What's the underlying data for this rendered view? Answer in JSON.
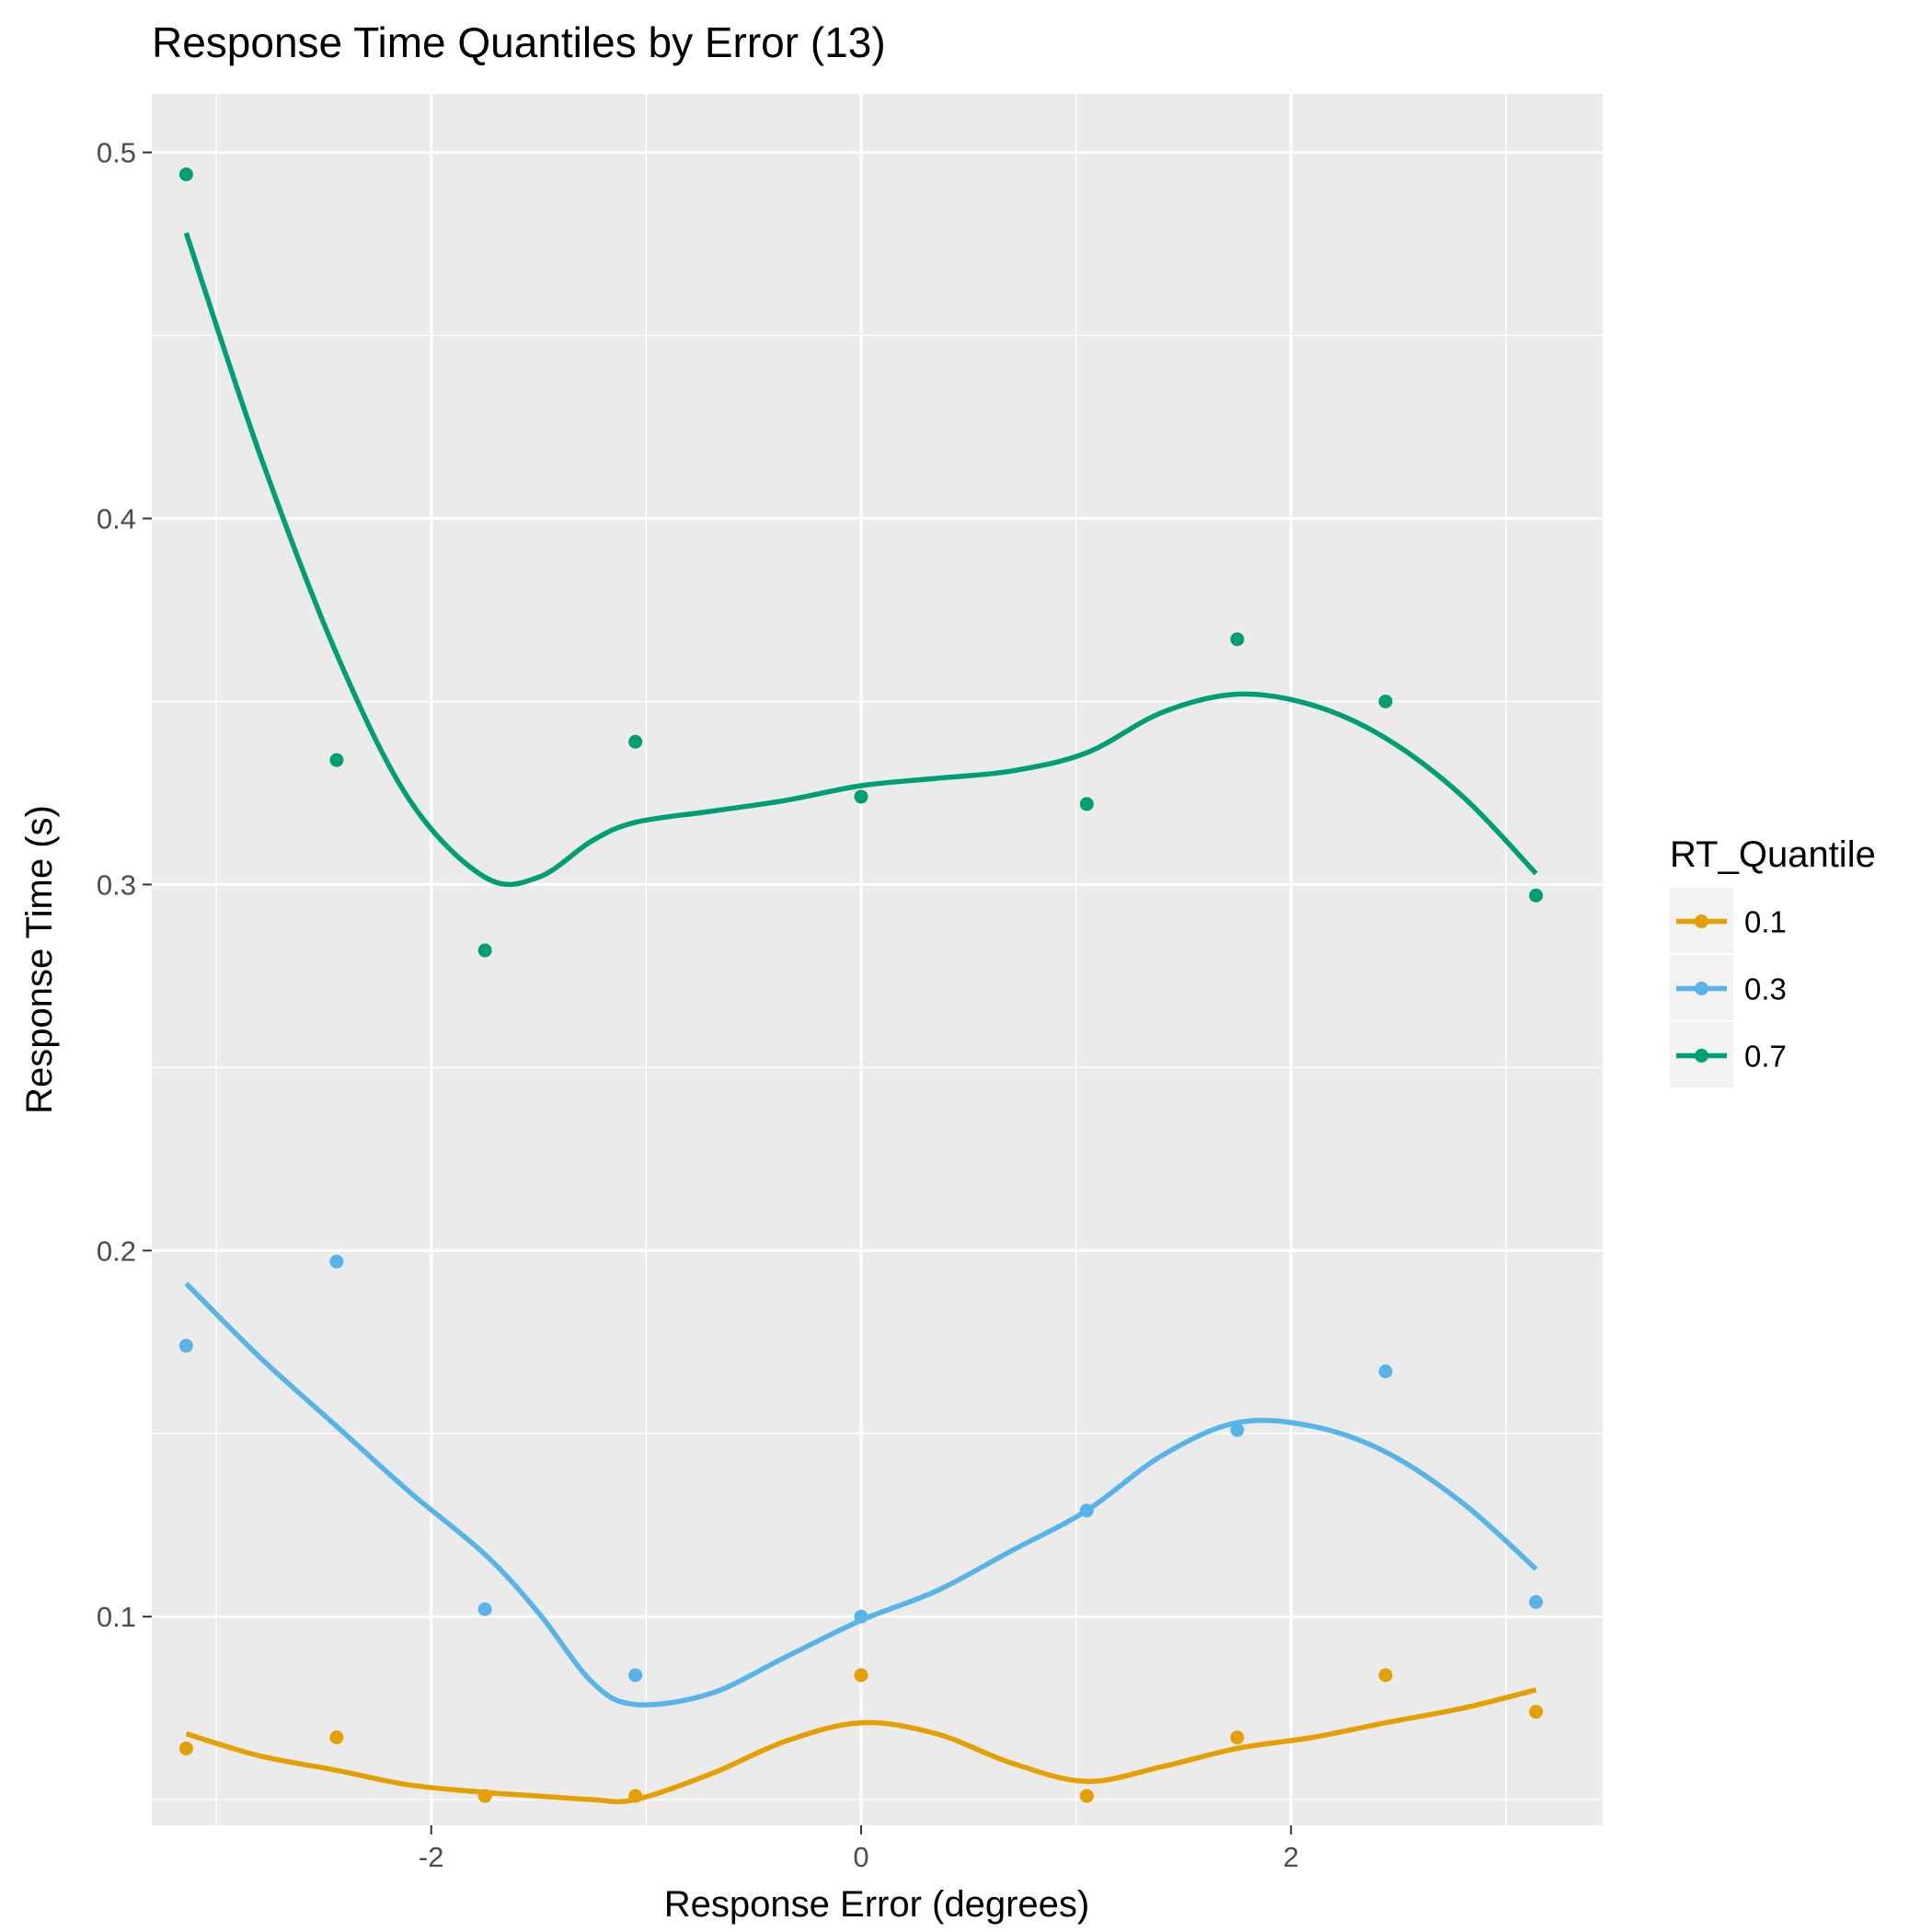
{
  "chart_data": {
    "type": "scatter",
    "title": "Response Time Quantiles by Error (13)",
    "xlabel": "Response Error (degrees)",
    "ylabel": "Response Time (s)",
    "xlim": [
      -3.3,
      3.45
    ],
    "ylim": [
      0.043,
      0.516
    ],
    "x_ticks": [
      -2,
      0,
      2
    ],
    "x_tick_labels": [
      "-2",
      "0",
      "2"
    ],
    "y_ticks": [
      0.1,
      0.2,
      0.3,
      0.4,
      0.5
    ],
    "y_tick_labels": [
      "0.1",
      "0.2",
      "0.3",
      "0.4",
      "0.5"
    ],
    "x_minor_ticks": [
      -3,
      -1,
      1,
      3
    ],
    "y_minor_ticks": [
      0.05,
      0.15,
      0.25,
      0.35,
      0.45
    ],
    "grid": true,
    "legend": {
      "title": "RT_Quantile",
      "position": "right"
    },
    "x": [
      -3.14,
      -2.44,
      -1.75,
      -1.05,
      0.0,
      1.05,
      1.75,
      2.44,
      3.14
    ],
    "series": [
      {
        "name": "0.1",
        "color": "#E69F00",
        "points": [
          0.064,
          0.067,
          0.051,
          0.051,
          0.084,
          0.051,
          0.067,
          0.084,
          0.074
        ],
        "smooth": [
          [
            -3.14,
            0.068
          ],
          [
            -2.8,
            0.062
          ],
          [
            -2.44,
            0.058
          ],
          [
            -2.1,
            0.054
          ],
          [
            -1.75,
            0.052
          ],
          [
            -1.5,
            0.051
          ],
          [
            -1.25,
            0.05
          ],
          [
            -1.05,
            0.05
          ],
          [
            -0.7,
            0.057
          ],
          [
            -0.35,
            0.066
          ],
          [
            0.0,
            0.071
          ],
          [
            0.35,
            0.068
          ],
          [
            0.7,
            0.06
          ],
          [
            1.05,
            0.055
          ],
          [
            1.4,
            0.059
          ],
          [
            1.75,
            0.064
          ],
          [
            2.1,
            0.067
          ],
          [
            2.44,
            0.071
          ],
          [
            2.8,
            0.075
          ],
          [
            3.14,
            0.08
          ]
        ]
      },
      {
        "name": "0.3",
        "color": "#56B4E9",
        "points": [
          0.174,
          0.197,
          0.102,
          0.084,
          0.1,
          0.129,
          0.151,
          0.167,
          0.104
        ],
        "smooth": [
          [
            -3.14,
            0.191
          ],
          [
            -2.8,
            0.171
          ],
          [
            -2.44,
            0.152
          ],
          [
            -2.1,
            0.134
          ],
          [
            -1.75,
            0.117
          ],
          [
            -1.5,
            0.101
          ],
          [
            -1.25,
            0.082
          ],
          [
            -1.05,
            0.076
          ],
          [
            -0.7,
            0.079
          ],
          [
            -0.35,
            0.089
          ],
          [
            0.0,
            0.099
          ],
          [
            0.35,
            0.107
          ],
          [
            0.7,
            0.118
          ],
          [
            1.05,
            0.129
          ],
          [
            1.4,
            0.144
          ],
          [
            1.75,
            0.153
          ],
          [
            2.1,
            0.152
          ],
          [
            2.44,
            0.145
          ],
          [
            2.8,
            0.131
          ],
          [
            3.14,
            0.113
          ]
        ]
      },
      {
        "name": "0.7",
        "color": "#009E73",
        "points": [
          0.494,
          0.334,
          0.282,
          0.339,
          0.324,
          0.322,
          0.367,
          0.35,
          0.297
        ],
        "smooth": [
          [
            -3.14,
            0.478
          ],
          [
            -2.8,
            0.418
          ],
          [
            -2.44,
            0.363
          ],
          [
            -2.1,
            0.323
          ],
          [
            -1.75,
            0.302
          ],
          [
            -1.5,
            0.302
          ],
          [
            -1.25,
            0.312
          ],
          [
            -1.05,
            0.317
          ],
          [
            -0.7,
            0.32
          ],
          [
            -0.35,
            0.323
          ],
          [
            0.0,
            0.327
          ],
          [
            0.35,
            0.329
          ],
          [
            0.7,
            0.331
          ],
          [
            1.05,
            0.336
          ],
          [
            1.4,
            0.347
          ],
          [
            1.75,
            0.352
          ],
          [
            2.1,
            0.349
          ],
          [
            2.44,
            0.34
          ],
          [
            2.8,
            0.324
          ],
          [
            3.14,
            0.303
          ]
        ]
      }
    ]
  }
}
